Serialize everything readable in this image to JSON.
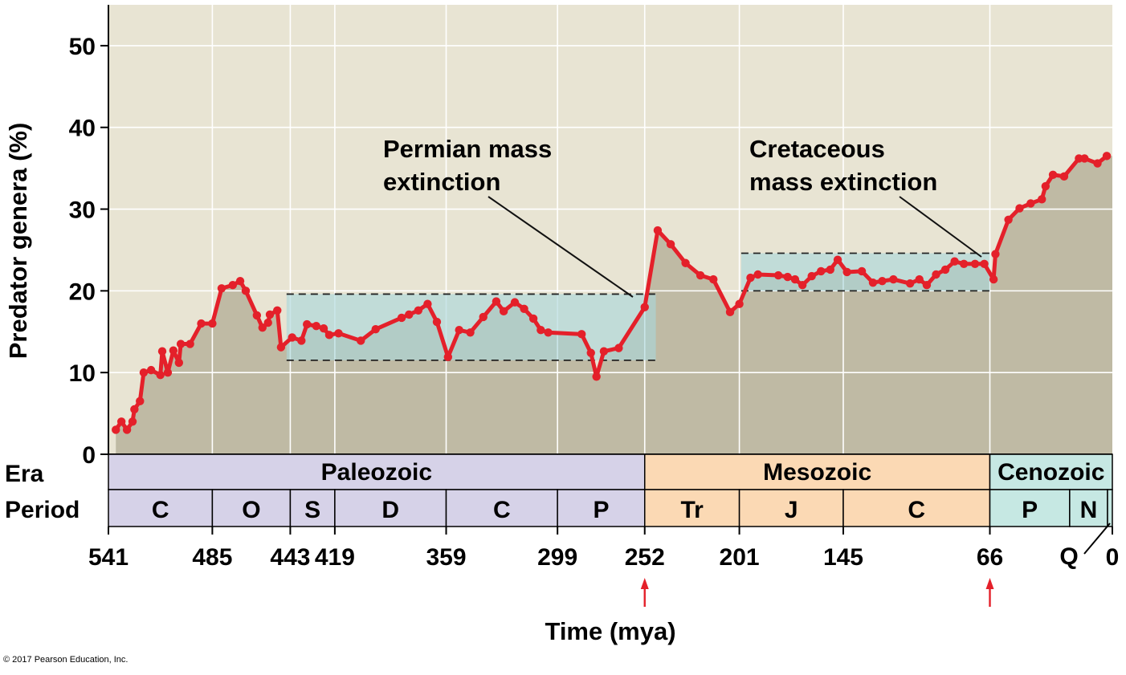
{
  "chart_data": {
    "type": "area",
    "xlabel": "Time (mya)",
    "ylabel": "Predator genera (%)",
    "ylim": [
      0,
      55
    ],
    "xlim": [
      541,
      0
    ],
    "x_axis_reversed": true,
    "y_ticks": [
      "0",
      "10",
      "20",
      "30",
      "40",
      "50"
    ],
    "x_ticks": [
      {
        "value": 541,
        "label": "541"
      },
      {
        "value": 485,
        "label": "485"
      },
      {
        "value": 443,
        "label": "443"
      },
      {
        "value": 419,
        "label": "419"
      },
      {
        "value": 359,
        "label": "359"
      },
      {
        "value": 299,
        "label": "299"
      },
      {
        "value": 252,
        "label": "252"
      },
      {
        "value": 201,
        "label": "201"
      },
      {
        "value": 145,
        "label": "145"
      },
      {
        "value": 66,
        "label": "66"
      },
      {
        "value": 0,
        "label": "0"
      }
    ],
    "grid": true,
    "colors": {
      "background": "#e8e4d3",
      "area": "#bfbaa4",
      "line": "#e4202a",
      "band_fill": "#a9d6db",
      "paleozoic": "#d6d2e8",
      "mesozoic": "#fbd9b4",
      "cenozoic": "#c6e8e3",
      "arrow": "#e4202a"
    },
    "series": [
      {
        "points": [
          [
            537,
            3
          ],
          [
            534,
            4
          ],
          [
            531,
            3
          ],
          [
            528,
            4
          ],
          [
            527,
            5.5
          ],
          [
            524,
            6.5
          ],
          [
            522,
            10
          ],
          [
            518,
            10.3
          ],
          [
            513,
            9.7
          ],
          [
            512,
            12.6
          ],
          [
            509,
            10
          ],
          [
            506,
            12.7
          ],
          [
            503,
            11.2
          ],
          [
            502,
            13.5
          ],
          [
            497,
            13.5
          ],
          [
            491,
            16
          ],
          [
            485,
            16
          ],
          [
            480,
            20.3
          ],
          [
            474,
            20.7
          ],
          [
            470,
            21.2
          ],
          [
            467,
            20
          ],
          [
            461,
            17
          ],
          [
            458,
            15.5
          ],
          [
            455,
            16.1
          ],
          [
            454,
            17.1
          ],
          [
            450,
            17.6
          ],
          [
            448,
            13.1
          ],
          [
            442,
            14.3
          ],
          [
            437,
            13.9
          ],
          [
            434,
            15.9
          ],
          [
            429,
            15.7
          ],
          [
            425,
            15.4
          ],
          [
            422,
            14.6
          ],
          [
            417,
            14.8
          ],
          [
            405,
            13.9
          ],
          [
            397,
            15.3
          ],
          [
            383,
            16.7
          ],
          [
            379,
            17.1
          ],
          [
            374,
            17.6
          ],
          [
            369,
            18.4
          ],
          [
            364,
            16.2
          ],
          [
            358,
            11.9
          ],
          [
            352,
            15.2
          ],
          [
            346,
            14.9
          ],
          [
            339,
            16.8
          ],
          [
            332,
            18.7
          ],
          [
            328,
            17.5
          ],
          [
            322,
            18.6
          ],
          [
            317,
            17.8
          ],
          [
            312,
            16.6
          ],
          [
            308,
            15.2
          ],
          [
            304,
            14.9
          ],
          [
            286,
            14.7
          ],
          [
            281,
            12.4
          ],
          [
            278,
            9.5
          ],
          [
            274,
            12.6
          ],
          [
            266,
            13
          ],
          [
            252,
            18
          ],
          [
            245,
            27.4
          ],
          [
            238,
            25.7
          ],
          [
            230,
            23.4
          ],
          [
            222,
            21.9
          ],
          [
            215,
            21.4
          ],
          [
            206,
            17.4
          ],
          [
            201,
            18.4
          ],
          [
            195,
            21.6
          ],
          [
            191,
            22
          ],
          [
            180,
            21.9
          ],
          [
            175,
            21.7
          ],
          [
            171,
            21.4
          ],
          [
            167,
            20.7
          ],
          [
            162,
            21.8
          ],
          [
            157,
            22.4
          ],
          [
            152,
            22.6
          ],
          [
            148,
            23.8
          ],
          [
            143,
            22.3
          ],
          [
            135,
            22.4
          ],
          [
            129,
            21
          ],
          [
            124,
            21.2
          ],
          [
            118,
            21.4
          ],
          [
            109,
            20.9
          ],
          [
            104,
            21.4
          ],
          [
            100,
            20.7
          ],
          [
            95,
            22
          ],
          [
            90,
            22.6
          ],
          [
            85,
            23.6
          ],
          [
            80,
            23.3
          ],
          [
            74,
            23.3
          ],
          [
            69,
            23.3
          ],
          [
            64,
            21.4
          ],
          [
            63,
            24.5
          ],
          [
            56,
            28.7
          ],
          [
            50,
            30.1
          ],
          [
            44,
            30.7
          ],
          [
            38,
            31.2
          ],
          [
            36,
            32.8
          ],
          [
            32,
            34.2
          ],
          [
            26,
            34
          ],
          [
            18,
            36.2
          ],
          [
            15,
            36.2
          ],
          [
            8,
            35.6
          ],
          [
            3,
            36.5
          ]
        ]
      }
    ],
    "shaded_bands": [
      {
        "x": [
          445,
          246
        ],
        "y": [
          11.5,
          19.6
        ]
      },
      {
        "x": [
          200,
          66
        ],
        "y": [
          20,
          24.6
        ]
      }
    ],
    "annotations": [
      {
        "lines": [
          "Permian mass",
          "extinction"
        ],
        "x": 252
      },
      {
        "lines": [
          "Cretaceous",
          "mass extinction"
        ],
        "x": 66
      }
    ],
    "eras": [
      {
        "label": "Paleozoic",
        "start": 541,
        "end": 252,
        "color_key": "paleozoic"
      },
      {
        "label": "Mesozoic",
        "start": 252,
        "end": 66,
        "color_key": "mesozoic"
      },
      {
        "label": "Cenozoic",
        "start": 66,
        "end": 0,
        "color_key": "cenozoic"
      }
    ],
    "periods": [
      {
        "label": "C",
        "start": 541,
        "end": 485,
        "color_key": "paleozoic"
      },
      {
        "label": "O",
        "start": 485,
        "end": 443,
        "color_key": "paleozoic"
      },
      {
        "label": "S",
        "start": 443,
        "end": 419,
        "color_key": "paleozoic"
      },
      {
        "label": "D",
        "start": 419,
        "end": 359,
        "color_key": "paleozoic"
      },
      {
        "label": "C",
        "start": 359,
        "end": 299,
        "color_key": "paleozoic"
      },
      {
        "label": "P",
        "start": 299,
        "end": 252,
        "color_key": "paleozoic"
      },
      {
        "label": "Tr",
        "start": 252,
        "end": 201,
        "color_key": "mesozoic"
      },
      {
        "label": "J",
        "start": 201,
        "end": 145,
        "color_key": "mesozoic"
      },
      {
        "label": "C",
        "start": 145,
        "end": 66,
        "color_key": "mesozoic"
      },
      {
        "label": "P",
        "start": 66,
        "end": 23,
        "color_key": "cenozoic"
      },
      {
        "label": "N",
        "start": 23,
        "end": 2.6,
        "color_key": "cenozoic"
      },
      {
        "label": "",
        "start": 2.6,
        "end": 0,
        "color_key": "cenozoic"
      }
    ],
    "era_row_label": "Era",
    "period_row_label": "Period",
    "quaternary_label": "Q",
    "extinction_arrows": [
      252,
      66
    ]
  },
  "copyright": "© 2017 Pearson Education, Inc."
}
